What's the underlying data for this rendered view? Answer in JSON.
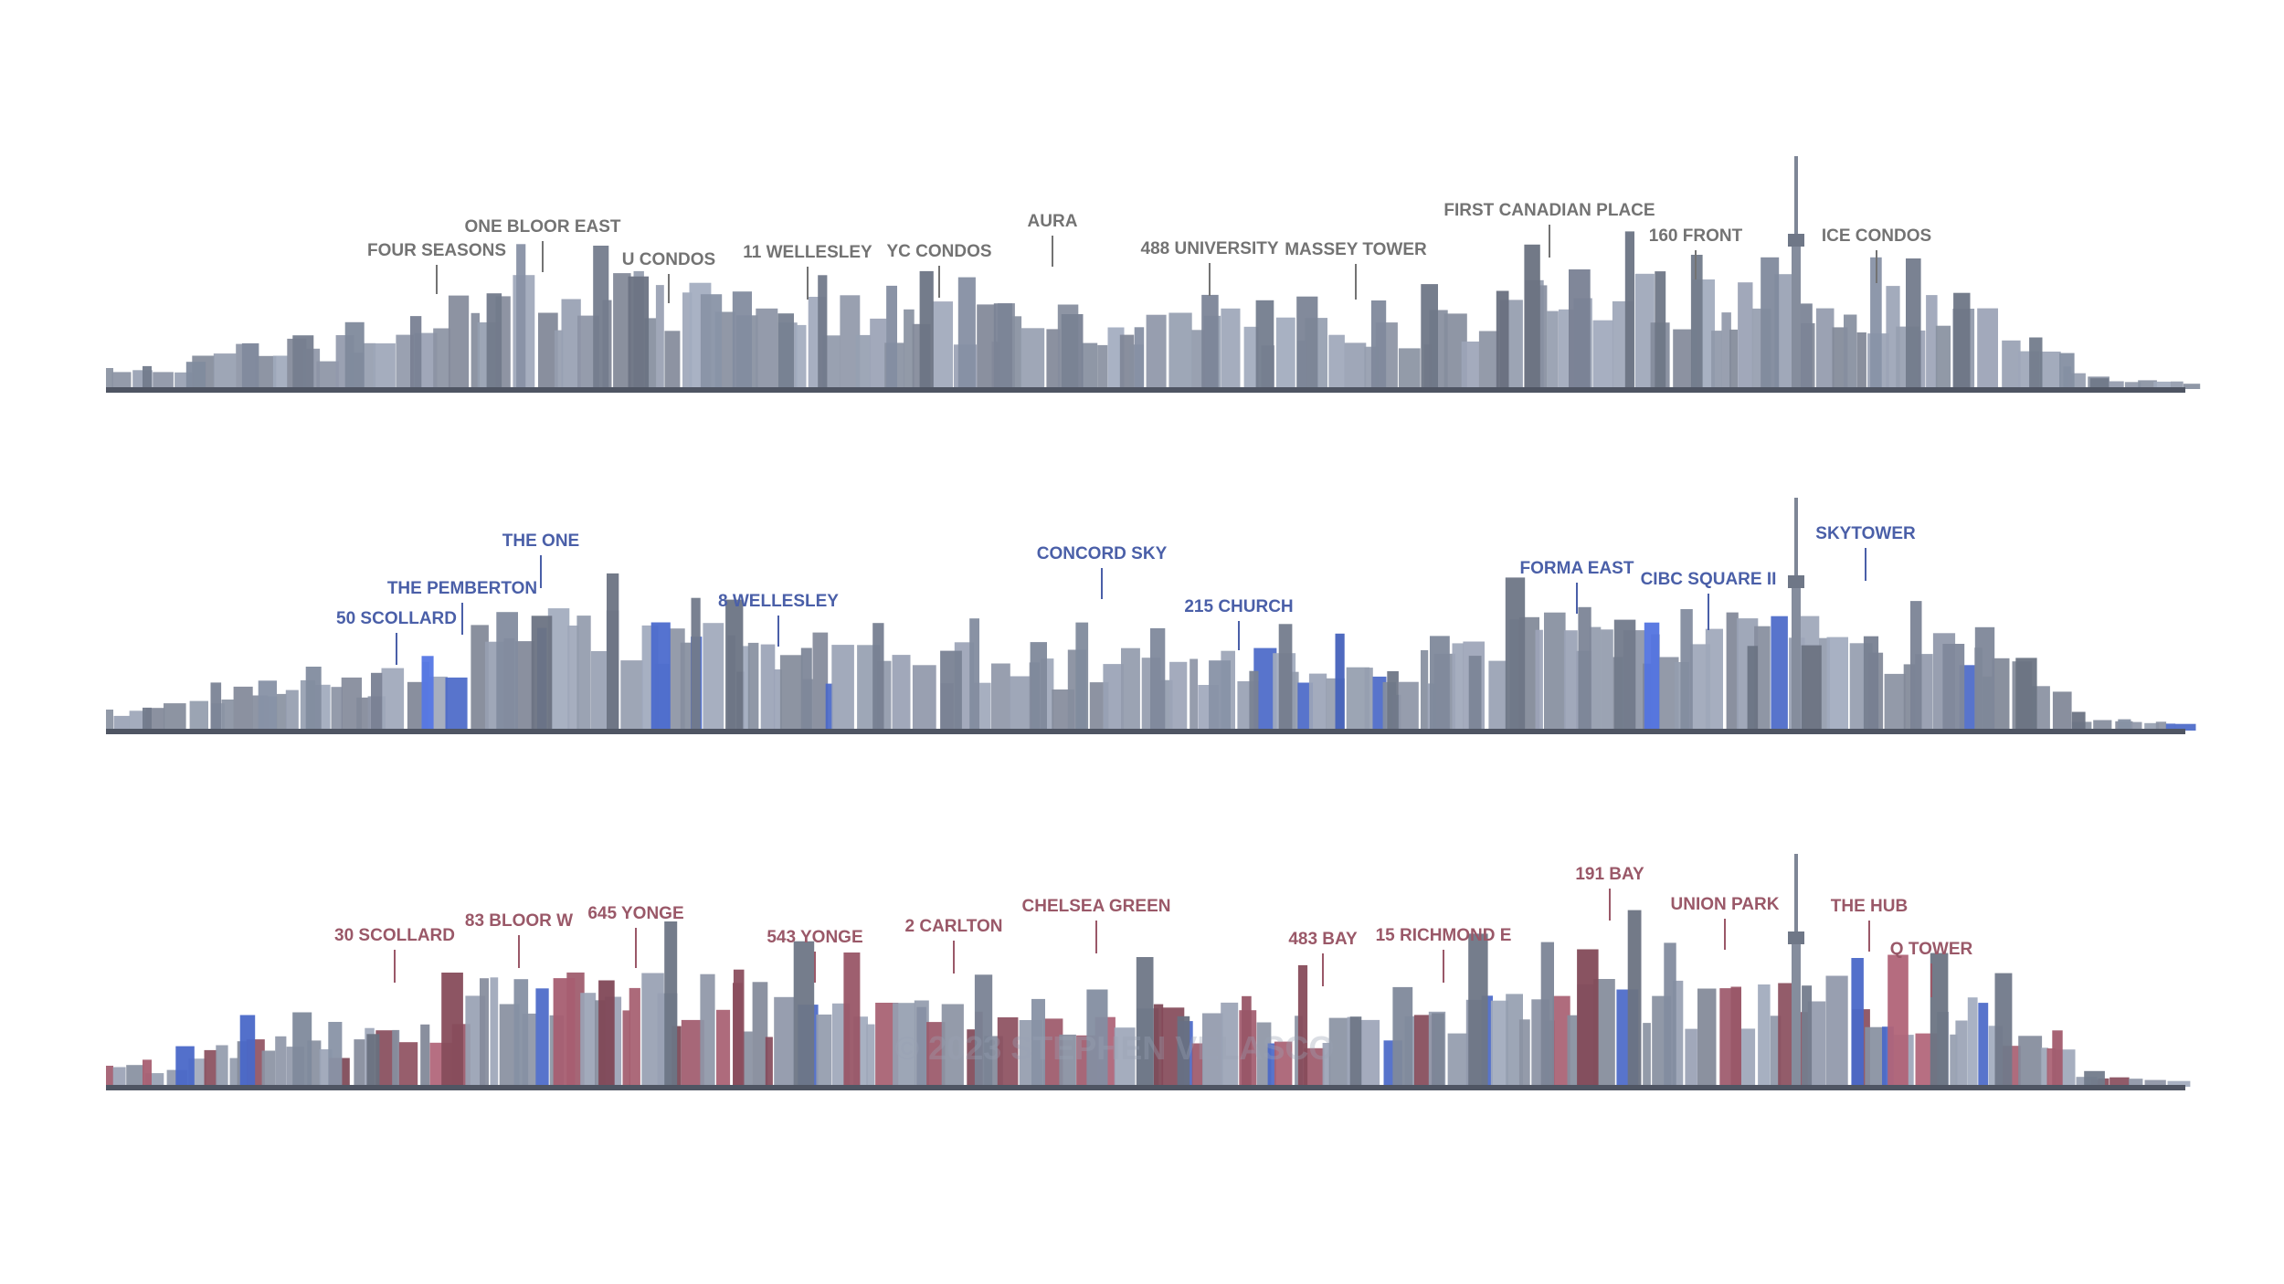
{
  "colors": {
    "background": "#ffffff",
    "building_gray": "#8d95a6",
    "building_gray_dark": "#6e7686",
    "building_blue": "#4a68c8",
    "building_red": "#8e5060",
    "label_gray": "#737373",
    "label_blue": "#4a5fa8",
    "label_red": "#9a5868",
    "ground": "#4f5563"
  },
  "watermark": "© 2023 STEPHEN VELASCO",
  "panels": [
    {
      "name": "existing",
      "label_color_key": "label_gray",
      "labels": [
        {
          "text": "FOUR SEASONS",
          "id": "four-seasons"
        },
        {
          "text": "ONE BLOOR EAST",
          "id": "one-bloor-east"
        },
        {
          "text": "U CONDOS",
          "id": "u-condos"
        },
        {
          "text": "11 WELLESLEY",
          "id": "11-wellesley"
        },
        {
          "text": "YC CONDOS",
          "id": "yc-condos"
        },
        {
          "text": "AURA",
          "id": "aura"
        },
        {
          "text": "488 UNIVERSITY",
          "id": "488-university"
        },
        {
          "text": "MASSEY TOWER",
          "id": "massey-tower"
        },
        {
          "text": "FIRST CANADIAN PLACE",
          "id": "first-canadian-place"
        },
        {
          "text": "160 FRONT",
          "id": "160-front"
        },
        {
          "text": "ICE CONDOS",
          "id": "ice-condos"
        }
      ]
    },
    {
      "name": "under-construction",
      "label_color_key": "label_blue",
      "labels": [
        {
          "text": "50 SCOLLARD",
          "id": "50-scollard"
        },
        {
          "text": "THE PEMBERTON",
          "id": "the-pemberton"
        },
        {
          "text": "THE ONE",
          "id": "the-one"
        },
        {
          "text": "8 WELLESLEY",
          "id": "8-wellesley"
        },
        {
          "text": "CONCORD SKY",
          "id": "concord-sky"
        },
        {
          "text": "215 CHURCH",
          "id": "215-church"
        },
        {
          "text": "FORMA EAST",
          "id": "forma-east"
        },
        {
          "text": "CIBC SQUARE II",
          "id": "cibc-square-ii"
        },
        {
          "text": "SKYTOWER",
          "id": "skytower"
        }
      ]
    },
    {
      "name": "proposed",
      "label_color_key": "label_red",
      "labels": [
        {
          "text": "30 SCOLLARD",
          "id": "30-scollard"
        },
        {
          "text": "83 BLOOR W",
          "id": "83-bloor-w"
        },
        {
          "text": "645 YONGE",
          "id": "645-yonge"
        },
        {
          "text": "543 YONGE",
          "id": "543-yonge"
        },
        {
          "text": "2 CARLTON",
          "id": "2-carlton"
        },
        {
          "text": "CHELSEA GREEN",
          "id": "chelsea-green"
        },
        {
          "text": "483 BAY",
          "id": "483-bay"
        },
        {
          "text": "15 RICHMOND E",
          "id": "15-richmond-e"
        },
        {
          "text": "191 BAY",
          "id": "191-bay"
        },
        {
          "text": "UNION PARK",
          "id": "union-park"
        },
        {
          "text": "THE HUB",
          "id": "the-hub"
        },
        {
          "text": "Q TOWER",
          "id": "q-tower"
        }
      ]
    }
  ]
}
